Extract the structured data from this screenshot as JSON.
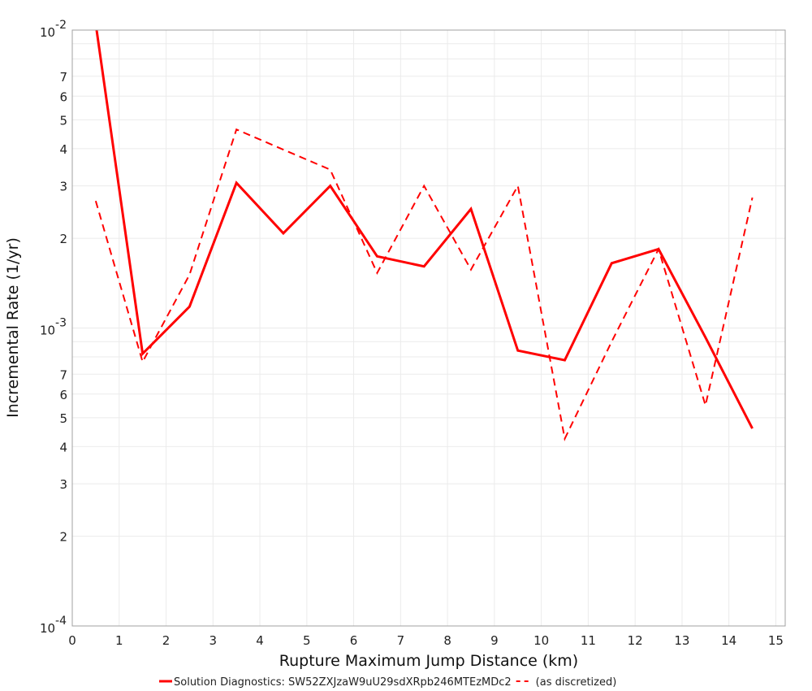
{
  "chart_data": {
    "type": "line",
    "title": "",
    "xlabel": "Rupture Maximum Jump Distance (km)",
    "ylabel": "Incremental Rate (1/yr)",
    "xlim": [
      0,
      15.2
    ],
    "ylim": [
      0.0001,
      0.01
    ],
    "yscale": "log",
    "grid": true,
    "legend_position": "bottom",
    "x_ticks": [
      0,
      1,
      2,
      3,
      4,
      5,
      6,
      7,
      8,
      9,
      10,
      11,
      12,
      13,
      14,
      15
    ],
    "y_major_ticks": [
      {
        "value": 0.01,
        "label_base": "10",
        "label_exp": "-2"
      },
      {
        "value": 0.001,
        "label_base": "10",
        "label_exp": "-3"
      },
      {
        "value": 0.0001,
        "label_base": "10",
        "label_exp": "-4"
      }
    ],
    "y_minor_labels": [
      "2",
      "3",
      "4",
      "5",
      "6",
      "7"
    ],
    "x": [
      0.5,
      1.5,
      2.5,
      3.5,
      4.5,
      5.5,
      6.5,
      7.5,
      8.5,
      9.5,
      10.5,
      11.5,
      12.5,
      13.5,
      14.5
    ],
    "series": [
      {
        "name": "Solution Diagnostics: SW52ZXJzaW9uU29sdXRpb246MTEzMDc2",
        "style": "solid",
        "color": "#ff0000",
        "values": [
          0.0105,
          0.00082,
          0.00118,
          0.00307,
          0.00208,
          0.003,
          0.00174,
          0.00161,
          0.00251,
          0.00084,
          0.00078,
          0.00165,
          0.00184,
          0.00093,
          0.00046
        ]
      },
      {
        "name": "(as discretized)",
        "style": "dashed",
        "color": "#ff0000",
        "values": [
          0.00267,
          0.00077,
          0.00151,
          0.00464,
          0.00397,
          0.0034,
          0.00153,
          0.003,
          0.00157,
          0.003,
          0.000425,
          0.0009,
          0.00184,
          0.00055,
          0.00274
        ]
      }
    ]
  }
}
